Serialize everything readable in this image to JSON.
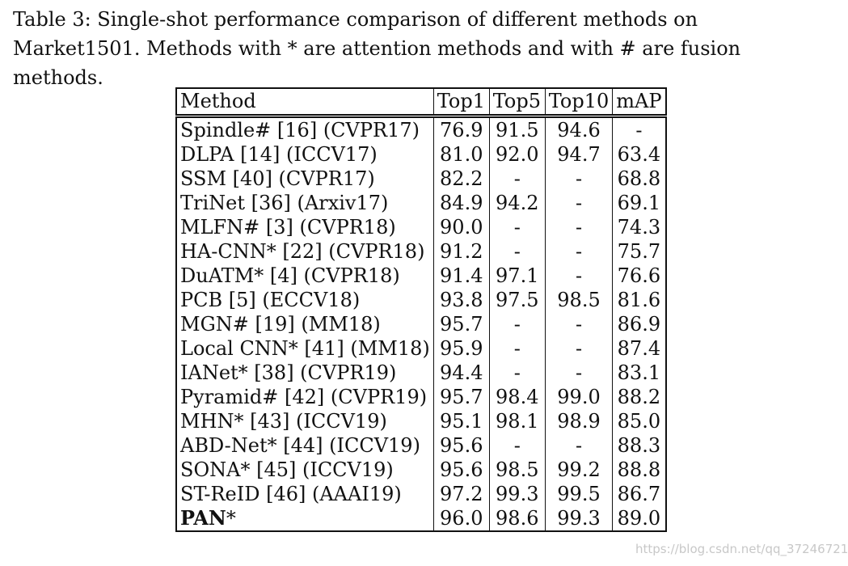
{
  "caption": "Table 3: Single-shot performance comparison of different methods on Market1501. Methods with * are attention methods and with # are fusion methods.",
  "table": {
    "headers": [
      "Method",
      "Top1",
      "Top5",
      "Top10",
      "mAP"
    ],
    "rows": [
      {
        "method": "Spindle# [16] (CVPR17)",
        "top1": "76.9",
        "top5": "91.5",
        "top10": "94.6",
        "map": "-"
      },
      {
        "method": "DLPA [14] (ICCV17)",
        "top1": "81.0",
        "top5": "92.0",
        "top10": "94.7",
        "map": "63.4"
      },
      {
        "method": "SSM [40] (CVPR17)",
        "top1": "82.2",
        "top5": "-",
        "top10": "-",
        "map": "68.8"
      },
      {
        "method": "TriNet [36] (Arxiv17)",
        "top1": "84.9",
        "top5": "94.2",
        "top10": "-",
        "map": "69.1"
      },
      {
        "method": "MLFN# [3] (CVPR18)",
        "top1": "90.0",
        "top5": "-",
        "top10": "-",
        "map": "74.3"
      },
      {
        "method": "HA-CNN* [22] (CVPR18)",
        "top1": "91.2",
        "top5": "-",
        "top10": "-",
        "map": "75.7"
      },
      {
        "method": "DuATM* [4] (CVPR18)",
        "top1": "91.4",
        "top5": "97.1",
        "top10": "-",
        "map": "76.6"
      },
      {
        "method": "PCB [5] (ECCV18)",
        "top1": "93.8",
        "top5": "97.5",
        "top10": "98.5",
        "map": "81.6"
      },
      {
        "method": "MGN# [19] (MM18)",
        "top1": "95.7",
        "top5": "-",
        "top10": "-",
        "map": "86.9"
      },
      {
        "method": "Local CNN* [41] (MM18)",
        "top1": "95.9",
        "top5": "-",
        "top10": "-",
        "map": "87.4"
      },
      {
        "method": "IANet* [38] (CVPR19)",
        "top1": "94.4",
        "top5": "-",
        "top10": "-",
        "map": "83.1"
      },
      {
        "method": "Pyramid# [42] (CVPR19)",
        "top1": "95.7",
        "top5": "98.4",
        "top10": "99.0",
        "map": "88.2"
      },
      {
        "method": "MHN* [43] (ICCV19)",
        "top1": "95.1",
        "top5": "98.1",
        "top10": "98.9",
        "map": "85.0"
      },
      {
        "method": "ABD-Net* [44] (ICCV19)",
        "top1": "95.6",
        "top5": "-",
        "top10": "-",
        "map": "88.3"
      },
      {
        "method": "SONA* [45] (ICCV19)",
        "top1": "95.6",
        "top5": "98.5",
        "top10": "99.2",
        "map": "88.8"
      },
      {
        "method": "ST-ReID [46] (AAAI19)",
        "top1": "97.2",
        "top5": "99.3",
        "top10": "99.5",
        "map": "86.7"
      }
    ],
    "last_row": {
      "method_bold": "PAN",
      "method_suffix": "*",
      "top1": "96.0",
      "top5": "98.6",
      "top10": "99.3",
      "map": "89.0"
    }
  },
  "watermark": "https://blog.csdn.net/qq_37246721"
}
